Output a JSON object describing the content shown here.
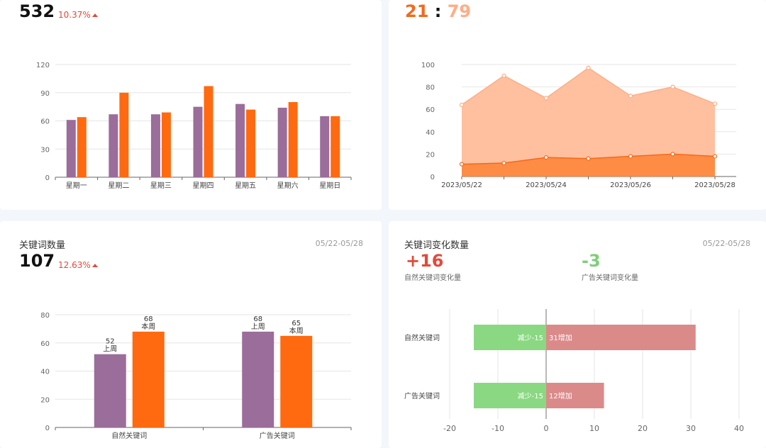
{
  "top_left": {
    "value": "532",
    "change": "10.37%"
  },
  "top_right": {
    "value_a": "21",
    "separator": ":",
    "value_b": "79"
  },
  "bottom_left": {
    "title": "关键词数量",
    "date_range": "05/22-05/28",
    "value": "107",
    "change": "12.63%"
  },
  "bottom_right": {
    "title": "关键词变化数量",
    "date_range": "05/22-05/28",
    "stat_a": {
      "value": "+16",
      "label": "自然关键词变化量"
    },
    "stat_b": {
      "value": "-3",
      "label": "广告关键词变化量"
    }
  },
  "colors": {
    "purple": "#9b6d9a",
    "orange": "#ff6a10",
    "area_light": "#ffc09f",
    "area_light_line": "#ffad86",
    "area_dark": "#ff8c45",
    "area_dark_line": "#f26a1b",
    "green": "#8ad882",
    "red": "#db8a8a",
    "red_text": "#e24a3b",
    "green_text": "#7fce7a"
  },
  "chart_data": [
    {
      "id": "weekday-bars",
      "type": "bar",
      "categories": [
        "星期一",
        "星期二",
        "星期三",
        "星期四",
        "星期五",
        "星期六",
        "星期日"
      ],
      "series": [
        {
          "values": [
            61,
            67,
            67,
            75,
            78,
            74,
            65
          ]
        },
        {
          "values": [
            64,
            90,
            69,
            97,
            72,
            80,
            65
          ]
        }
      ],
      "ylim": [
        0,
        120
      ],
      "yticks": [
        0,
        30,
        60,
        90,
        120
      ],
      "grid": true
    },
    {
      "id": "daily-area",
      "type": "area",
      "x": [
        "2023/05/22",
        "2023/05/23",
        "2023/05/24",
        "2023/05/25",
        "2023/05/26",
        "2023/05/27",
        "2023/05/28"
      ],
      "xticklabels": [
        "2023/05/22",
        "2023/05/24",
        "2023/05/26",
        "2023/05/28"
      ],
      "series": [
        {
          "values": [
            64,
            90,
            70,
            97,
            72,
            80,
            65
          ]
        },
        {
          "values": [
            11,
            12,
            17,
            16,
            18,
            20,
            18
          ]
        }
      ],
      "ylim": [
        0,
        100
      ],
      "yticks": [
        0,
        20,
        40,
        60,
        80,
        100
      ],
      "grid": true
    },
    {
      "id": "keyword-count-bars",
      "type": "bar",
      "categories": [
        "自然关键词",
        "广告关键词"
      ],
      "series": [
        {
          "name": "上周",
          "values": [
            52,
            68
          ]
        },
        {
          "name": "本周",
          "values": [
            68,
            65
          ]
        }
      ],
      "ylim": [
        0,
        80
      ],
      "yticks": [
        0,
        20,
        40,
        60,
        80
      ],
      "grid": true
    },
    {
      "id": "keyword-change-bars",
      "type": "bar",
      "orientation": "horizontal",
      "categories": [
        "自然关键词",
        "广告关键词"
      ],
      "series": [
        {
          "name": "减少",
          "values": [
            -15,
            -15
          ],
          "labels": [
            "减少-15",
            "减少-15"
          ]
        },
        {
          "name": "增加",
          "values": [
            31,
            12
          ],
          "labels": [
            "31增加",
            "12增加"
          ]
        }
      ],
      "xlim": [
        -20,
        40
      ],
      "xticks": [
        -20,
        -10,
        0,
        10,
        20,
        30,
        40
      ],
      "grid": true
    }
  ]
}
